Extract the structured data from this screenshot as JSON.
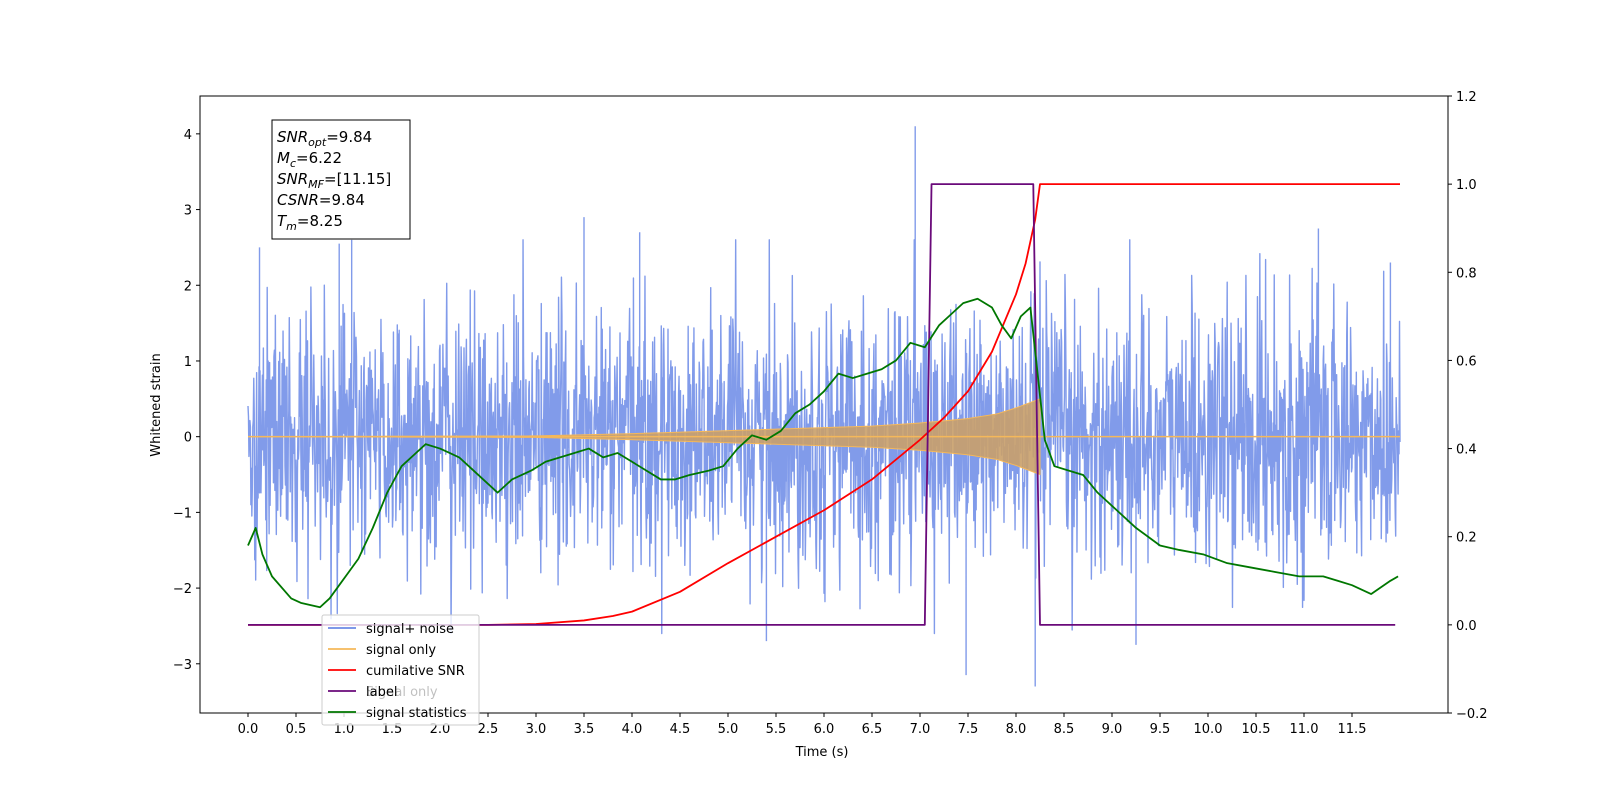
{
  "chart_data": {
    "type": "line",
    "xlabel": "Time (s)",
    "ylabel": "Whitened strain",
    "xlim": [
      -0.5,
      12.5
    ],
    "ylim": [
      -3.65,
      4.5
    ],
    "y2lim": [
      -0.2,
      1.2
    ],
    "grid": false,
    "x_ticks": [
      "0.0",
      "0.5",
      "1.0",
      "1.5",
      "2.0",
      "2.5",
      "3.0",
      "3.5",
      "4.0",
      "4.5",
      "5.0",
      "5.5",
      "6.0",
      "6.5",
      "7.0",
      "7.5",
      "8.0",
      "8.5",
      "9.0",
      "9.5",
      "10.0",
      "10.5",
      "11.0",
      "11.5"
    ],
    "y_ticks": [
      "−3",
      "−2",
      "−1",
      "0",
      "1",
      "2",
      "3",
      "4"
    ],
    "y2_ticks": [
      "−0.2",
      "0.0",
      "0.2",
      "0.4",
      "0.6",
      "0.8",
      "1.0",
      "1.2"
    ],
    "annotation": {
      "lines": [
        {
          "sym": "SNR",
          "sub": "opt",
          "value": "=9.84"
        },
        {
          "sym": "M",
          "sub": "c",
          "value": "=6.22"
        },
        {
          "sym": "SNR",
          "sub": "MF",
          "value": "=[11.15]"
        },
        {
          "sym": "CSNR",
          "sub": "",
          "value": "=9.84"
        },
        {
          "sym": "T",
          "sub": "m",
          "value": "=8.25"
        }
      ]
    },
    "legend": {
      "placement": "lower-left",
      "entries": [
        {
          "label": "signal+ noise",
          "color": "#6b8ae6"
        },
        {
          "label": "signal only",
          "color": "#f5b85a"
        },
        {
          "label": "cumilative SNR",
          "color": "#ff0000"
        },
        {
          "label": "label",
          "color": "#6a0a7a"
        },
        {
          "label": "signal statistics",
          "color": "#007700"
        }
      ],
      "occluded_text": "Signal only"
    },
    "series": [
      {
        "name": "signal+ noise",
        "axis": "left",
        "kind": "noise",
        "color": "#6b8ae6",
        "x_range": [
          0.0,
          12.0
        ],
        "sigma": 0.85,
        "spikes": [
          {
            "x": 0.12,
            "y": 2.5
          },
          {
            "x": 0.95,
            "y": 2.55
          },
          {
            "x": 1.08,
            "y": 2.6
          },
          {
            "x": 3.5,
            "y": 2.9
          },
          {
            "x": 4.08,
            "y": 2.7
          },
          {
            "x": 6.95,
            "y": 4.1
          },
          {
            "x": 7.48,
            "y": -3.15
          },
          {
            "x": 8.2,
            "y": -3.3
          },
          {
            "x": 9.25,
            "y": -2.75
          },
          {
            "x": 11.15,
            "y": 2.75
          },
          {
            "x": 11.9,
            "y": 2.3
          },
          {
            "x": 5.4,
            "y": -2.7
          }
        ]
      },
      {
        "name": "signal only",
        "axis": "left",
        "kind": "chirp",
        "color": "#f5b85a",
        "x_range": [
          0.0,
          8.25
        ],
        "envelope": [
          [
            0.0,
            0.0
          ],
          [
            3.0,
            0.01
          ],
          [
            4.0,
            0.04
          ],
          [
            5.0,
            0.08
          ],
          [
            6.0,
            0.12
          ],
          [
            6.5,
            0.14
          ],
          [
            7.0,
            0.18
          ],
          [
            7.5,
            0.24
          ],
          [
            7.8,
            0.3
          ],
          [
            8.0,
            0.38
          ],
          [
            8.25,
            0.5
          ]
        ]
      },
      {
        "name": "cumilative SNR",
        "axis": "right",
        "color": "#ff0000",
        "x": [
          0.0,
          2.5,
          3.0,
          3.5,
          3.8,
          4.0,
          4.5,
          5.0,
          5.5,
          6.0,
          6.5,
          7.0,
          7.25,
          7.5,
          7.75,
          8.0,
          8.1,
          8.2,
          8.25,
          8.3,
          12.0
        ],
        "y": [
          0.0,
          0.0,
          0.002,
          0.01,
          0.02,
          0.03,
          0.075,
          0.14,
          0.2,
          0.26,
          0.33,
          0.42,
          0.47,
          0.53,
          0.62,
          0.75,
          0.82,
          0.92,
          1.0,
          1.0,
          1.0
        ]
      },
      {
        "name": "label",
        "axis": "right",
        "color": "#6a0a7a",
        "x": [
          0.0,
          7.05,
          7.12,
          8.18,
          8.25,
          11.95
        ],
        "y": [
          0.0,
          0.0,
          1.0,
          1.0,
          0.0,
          0.0
        ]
      },
      {
        "name": "signal statistics",
        "axis": "right",
        "color": "#007700",
        "x": [
          0.0,
          0.08,
          0.15,
          0.25,
          0.45,
          0.55,
          0.75,
          0.85,
          0.95,
          1.05,
          1.15,
          1.3,
          1.45,
          1.6,
          1.75,
          1.85,
          2.0,
          2.1,
          2.2,
          2.3,
          2.45,
          2.6,
          2.75,
          2.95,
          3.1,
          3.25,
          3.4,
          3.55,
          3.7,
          3.85,
          4.0,
          4.15,
          4.3,
          4.45,
          4.6,
          4.8,
          4.95,
          5.1,
          5.25,
          5.4,
          5.55,
          5.7,
          5.85,
          6.0,
          6.15,
          6.3,
          6.45,
          6.6,
          6.75,
          6.9,
          7.05,
          7.2,
          7.3,
          7.45,
          7.6,
          7.75,
          7.85,
          7.95,
          8.05,
          8.15,
          8.3,
          8.4,
          8.55,
          8.7,
          8.85,
          9.05,
          9.25,
          9.5,
          9.7,
          9.95,
          10.2,
          10.45,
          10.7,
          10.95,
          11.2,
          11.35,
          11.5,
          11.7,
          11.9,
          11.98
        ],
        "y": [
          0.18,
          0.22,
          0.16,
          0.11,
          0.06,
          0.05,
          0.04,
          0.06,
          0.09,
          0.12,
          0.15,
          0.22,
          0.3,
          0.36,
          0.39,
          0.41,
          0.4,
          0.39,
          0.38,
          0.36,
          0.33,
          0.3,
          0.33,
          0.35,
          0.37,
          0.38,
          0.39,
          0.4,
          0.38,
          0.39,
          0.37,
          0.35,
          0.33,
          0.33,
          0.34,
          0.35,
          0.36,
          0.4,
          0.43,
          0.42,
          0.44,
          0.48,
          0.5,
          0.53,
          0.57,
          0.56,
          0.57,
          0.58,
          0.6,
          0.64,
          0.63,
          0.68,
          0.7,
          0.73,
          0.74,
          0.72,
          0.68,
          0.65,
          0.7,
          0.72,
          0.42,
          0.36,
          0.35,
          0.34,
          0.3,
          0.26,
          0.22,
          0.18,
          0.17,
          0.16,
          0.14,
          0.13,
          0.12,
          0.11,
          0.11,
          0.1,
          0.09,
          0.07,
          0.1,
          0.11
        ]
      }
    ]
  }
}
